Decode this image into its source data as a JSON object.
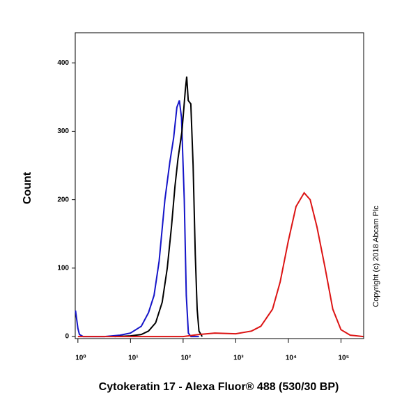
{
  "chart_data": {
    "type": "line",
    "x_scale": "log",
    "y_label": "Count",
    "x_label": "Cytokeratin 17 - Alexa Fluor® 488 (530/30 BP)",
    "annotation": "Copyright (c) 2018 Abcam Plc",
    "xlim": [
      0.89,
      270000
    ],
    "ylim": [
      -3,
      444
    ],
    "xticks": [
      {
        "value": 1,
        "label": "10⁰"
      },
      {
        "value": 10,
        "label": "10¹"
      },
      {
        "value": 100,
        "label": "10²"
      },
      {
        "value": 1000,
        "label": "10³"
      },
      {
        "value": 10000,
        "label": "10⁴"
      },
      {
        "value": 100000,
        "label": "10⁵"
      }
    ],
    "yticks": [
      0,
      100,
      200,
      300,
      400
    ],
    "series": [
      {
        "color": "#1414c8",
        "x": [
          0.9,
          1,
          1.07,
          1.26,
          3.2,
          6.3,
          10,
          16,
          22,
          28,
          35,
          45,
          56,
          66,
          76,
          85,
          93,
          105,
          115,
          126,
          141,
          200
        ],
        "values": [
          38,
          12,
          3,
          0,
          0,
          2,
          5,
          15,
          35,
          60,
          110,
          200,
          255,
          290,
          335,
          345,
          320,
          200,
          60,
          5,
          0,
          0
        ]
      },
      {
        "color": "#000000",
        "x": [
          5,
          10,
          16,
          22,
          30,
          40,
          50,
          60,
          70,
          80,
          95,
          110,
          117,
          125,
          140,
          155,
          170,
          185,
          200,
          230
        ],
        "values": [
          0,
          1,
          3,
          8,
          20,
          50,
          100,
          160,
          220,
          260,
          300,
          360,
          380,
          345,
          340,
          250,
          120,
          40,
          8,
          0
        ]
      },
      {
        "color": "#dc1414",
        "x": [
          1,
          100,
          200,
          400,
          1000,
          2000,
          3000,
          5000,
          7000,
          10000,
          14000,
          20000,
          26000,
          35000,
          50000,
          70000,
          100000,
          150000,
          265000
        ],
        "values": [
          0,
          0,
          3,
          5,
          4,
          8,
          15,
          40,
          80,
          140,
          190,
          210,
          200,
          160,
          100,
          40,
          10,
          2,
          0
        ]
      }
    ]
  }
}
